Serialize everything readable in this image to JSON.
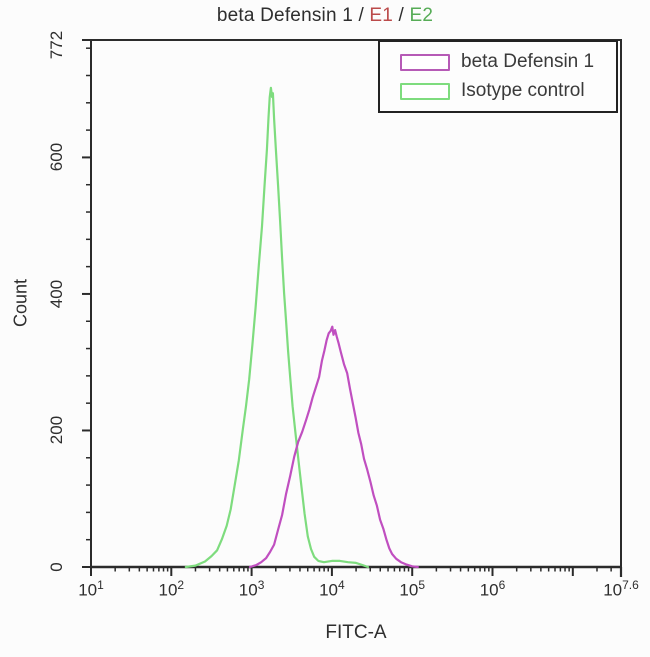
{
  "title": {
    "main": "beta Defensin 1 / ",
    "e1": "E1",
    "slash": " / ",
    "e2": "E2",
    "e1_color": "#bb4a4a",
    "e2_color": "#56ac56"
  },
  "legend": {
    "items": [
      {
        "label": "beta Defensin 1",
        "color": "#b65ab6"
      },
      {
        "label": "Isotype control",
        "color": "#7edc7e"
      }
    ]
  },
  "chart_data": {
    "type": "line",
    "subtype": "flow-cytometry-overlay-histogram",
    "title": "beta Defensin 1 / E1 / E2",
    "xlabel": "FITC-A",
    "ylabel": "Count",
    "x_scale": "log10",
    "xlim_log10": [
      1,
      7.6
    ],
    "x_major_tick_exponents": [
      1,
      2,
      3,
      4,
      5,
      6,
      7
    ],
    "x_labeled_exponents": [
      "1",
      "2",
      "3",
      "4",
      "5",
      "6"
    ],
    "x_end_tick": {
      "exponent_label": "7.6",
      "log10": 7.6
    },
    "ylim": [
      0,
      772
    ],
    "y_major_ticks": [
      0,
      200,
      400,
      600
    ],
    "y_top_tick": 772,
    "y_minor_step": 40,
    "grid": false,
    "legend_position": "top-right",
    "series": [
      {
        "name": "Isotype control",
        "color": "#7edc7e",
        "peak": {
          "x_log10": 3.24,
          "count": 702
        },
        "points": [
          [
            2.18,
            0
          ],
          [
            2.3,
            2
          ],
          [
            2.42,
            8
          ],
          [
            2.5,
            16
          ],
          [
            2.57,
            26
          ],
          [
            2.63,
            40
          ],
          [
            2.69,
            60
          ],
          [
            2.74,
            86
          ],
          [
            2.79,
            118
          ],
          [
            2.84,
            158
          ],
          [
            2.89,
            200
          ],
          [
            2.93,
            236
          ],
          [
            2.97,
            276
          ],
          [
            3.01,
            324
          ],
          [
            3.05,
            382
          ],
          [
            3.09,
            440
          ],
          [
            3.13,
            500
          ],
          [
            3.16,
            558
          ],
          [
            3.19,
            610
          ],
          [
            3.21,
            660
          ],
          [
            3.225,
            686
          ],
          [
            3.24,
            702
          ],
          [
            3.255,
            688
          ],
          [
            3.265,
            694
          ],
          [
            3.28,
            658
          ],
          [
            3.3,
            614
          ],
          [
            3.33,
            560
          ],
          [
            3.355,
            506
          ],
          [
            3.38,
            452
          ],
          [
            3.405,
            402
          ],
          [
            3.43,
            358
          ],
          [
            3.455,
            318
          ],
          [
            3.48,
            276
          ],
          [
            3.51,
            236
          ],
          [
            3.55,
            192
          ],
          [
            3.59,
            148
          ],
          [
            3.63,
            110
          ],
          [
            3.66,
            76
          ],
          [
            3.7,
            46
          ],
          [
            3.74,
            26
          ],
          [
            3.78,
            15
          ],
          [
            3.83,
            9
          ],
          [
            3.9,
            7
          ],
          [
            4.0,
            9
          ],
          [
            4.1,
            9
          ],
          [
            4.2,
            7
          ],
          [
            4.3,
            6
          ],
          [
            4.38,
            3
          ],
          [
            4.45,
            0
          ]
        ]
      },
      {
        "name": "beta Defensin 1",
        "color": "#c04fc0",
        "peak": {
          "x_log10": 4.0,
          "count": 352
        },
        "points": [
          [
            2.98,
            0
          ],
          [
            3.06,
            3
          ],
          [
            3.12,
            7
          ],
          [
            3.18,
            13
          ],
          [
            3.23,
            22
          ],
          [
            3.28,
            34
          ],
          [
            3.33,
            53
          ],
          [
            3.38,
            78
          ],
          [
            3.43,
            106
          ],
          [
            3.48,
            134
          ],
          [
            3.53,
            162
          ],
          [
            3.58,
            182
          ],
          [
            3.63,
            200
          ],
          [
            3.68,
            214
          ],
          [
            3.72,
            232
          ],
          [
            3.76,
            248
          ],
          [
            3.8,
            262
          ],
          [
            3.84,
            280
          ],
          [
            3.875,
            300
          ],
          [
            3.905,
            318
          ],
          [
            3.935,
            332
          ],
          [
            3.96,
            342
          ],
          [
            3.985,
            346
          ],
          [
            4.005,
            352
          ],
          [
            4.02,
            342
          ],
          [
            4.04,
            347
          ],
          [
            4.06,
            338
          ],
          [
            4.085,
            328
          ],
          [
            4.11,
            314
          ],
          [
            4.15,
            299
          ],
          [
            4.19,
            282
          ],
          [
            4.225,
            262
          ],
          [
            4.26,
            240
          ],
          [
            4.295,
            218
          ],
          [
            4.33,
            198
          ],
          [
            4.365,
            178
          ],
          [
            4.4,
            160
          ],
          [
            4.44,
            142
          ],
          [
            4.48,
            124
          ],
          [
            4.52,
            106
          ],
          [
            4.56,
            88
          ],
          [
            4.6,
            71
          ],
          [
            4.64,
            55
          ],
          [
            4.68,
            40
          ],
          [
            4.715,
            28
          ],
          [
            4.75,
            19
          ],
          [
            4.8,
            12
          ],
          [
            4.86,
            7
          ],
          [
            4.92,
            4
          ],
          [
            5.0,
            1
          ],
          [
            5.07,
            0
          ]
        ]
      }
    ]
  }
}
